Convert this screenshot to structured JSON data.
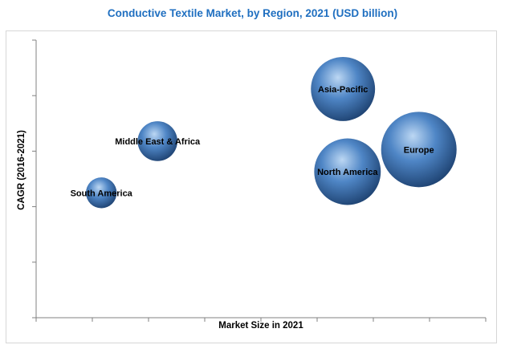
{
  "chart_data": {
    "type": "scatter",
    "title": "Conductive Textile Market, by Region, 2021 (USD billion)",
    "xlabel": "Market Size in 2021",
    "ylabel": "CAGR (2016-2021)",
    "xlim": [
      0,
      8
    ],
    "ylim": [
      0,
      5
    ],
    "grid": false,
    "points": [
      {
        "label": "South America",
        "x": 1.16,
        "y": 2.25,
        "size": 0.6
      },
      {
        "label": "Middle East & Africa",
        "x": 2.16,
        "y": 3.18,
        "size": 1.0
      },
      {
        "label": "Asia-Pacific",
        "x": 5.46,
        "y": 4.12,
        "size": 2.6
      },
      {
        "label": "North America",
        "x": 5.54,
        "y": 2.63,
        "size": 2.8
      },
      {
        "label": "Europe",
        "x": 6.81,
        "y": 3.03,
        "size": 3.6
      }
    ]
  },
  "colors": {
    "title": "#1f6fc0",
    "bubble_light": "#bcd7f3",
    "bubble_mid": "#4f86c6",
    "bubble_dark": "#1a3d6b",
    "axis": "#808080"
  }
}
